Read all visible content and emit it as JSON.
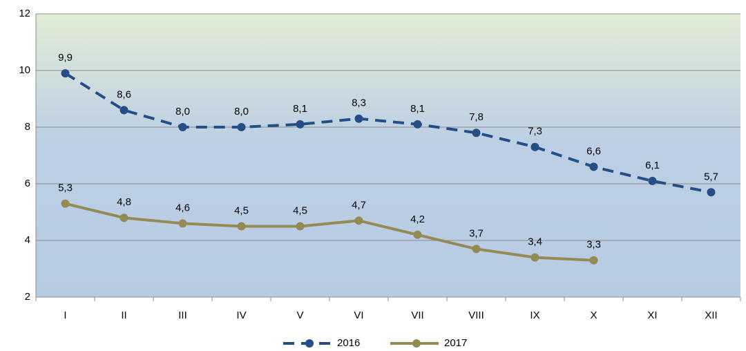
{
  "chart_data": {
    "type": "line",
    "categories": [
      "I",
      "II",
      "III",
      "IV",
      "V",
      "VI",
      "VII",
      "VIII",
      "IX",
      "X",
      "XI",
      "XII"
    ],
    "series": [
      {
        "name": "2016",
        "color": "#254e86",
        "dashed": true,
        "values": [
          9.9,
          8.6,
          8.0,
          8.0,
          8.1,
          8.3,
          8.1,
          7.8,
          7.3,
          6.6,
          6.1,
          5.7
        ],
        "value_labels": [
          "9,9",
          "8,6",
          "8,0",
          "8,0",
          "8,1",
          "8,3",
          "8,1",
          "7,8",
          "7,3",
          "6,6",
          "6,1",
          "5,7"
        ]
      },
      {
        "name": "2017",
        "color": "#948a54",
        "dashed": false,
        "values": [
          5.3,
          4.8,
          4.6,
          4.5,
          4.5,
          4.7,
          4.2,
          3.7,
          3.4,
          3.3,
          null,
          null
        ],
        "value_labels": [
          "5,3",
          "4,8",
          "4,6",
          "4,5",
          "4,5",
          "4,7",
          "4,2",
          "3,7",
          "3,4",
          "3,3",
          null,
          null
        ]
      }
    ],
    "ylim": [
      2,
      12
    ],
    "yticks": [
      2,
      4,
      6,
      8,
      10,
      12
    ],
    "grid": true,
    "legend": "bottom"
  }
}
